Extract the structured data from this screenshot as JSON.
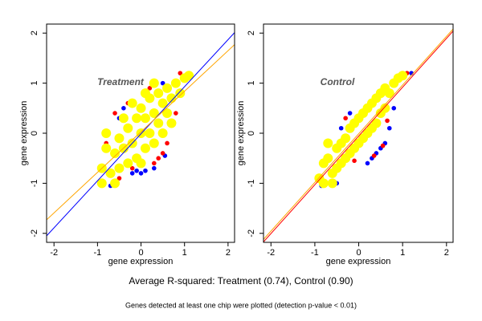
{
  "chart_data": [
    {
      "type": "scatter",
      "title": "Treatment",
      "xlabel": "gene expression",
      "ylabel": "gene expression",
      "xlim": [
        -2.17,
        2.15
      ],
      "ylim": [
        -2.18,
        2.18
      ],
      "xticks": [
        -2,
        -1,
        0,
        1,
        2
      ],
      "yticks": [
        -2,
        -1,
        0,
        1,
        2
      ],
      "series": [
        {
          "color": "#0000ff",
          "x": [
            -0.7,
            -0.9,
            0.1,
            0,
            -0.4,
            -0.5,
            1.15,
            0.55,
            -0.2,
            0.5,
            -0.1,
            0.3
          ],
          "y": [
            -1.05,
            -0.95,
            -0.75,
            -0.8,
            0.5,
            0.3,
            1.15,
            -0.45,
            -0.8,
            1.0,
            -0.75,
            -0.7
          ]
        },
        {
          "color": "#ff0000",
          "x": [
            -0.3,
            -0.6,
            0.5,
            0.6,
            -0.8,
            0.2,
            -0.2,
            0.3,
            0.8,
            -0.5,
            0.9,
            0.4
          ],
          "y": [
            0.6,
            0.4,
            -0.4,
            -0.2,
            -0.2,
            0.9,
            -0.7,
            -0.6,
            0.4,
            -0.9,
            1.2,
            -0.5
          ]
        },
        {
          "color": "#ffff00",
          "x": [
            -0.9,
            -0.8,
            -0.7,
            -0.6,
            -0.5,
            -0.5,
            -0.4,
            -0.3,
            -0.3,
            -0.2,
            -0.1,
            -0.1,
            0,
            0,
            0.1,
            0.1,
            0.2,
            0.2,
            0.3,
            0.3,
            0.4,
            0.4,
            0.5,
            0.5,
            0.6,
            0.6,
            0.7,
            0.8,
            0.9,
            1.0,
            1.1,
            -0.9,
            -0.6,
            -0.2,
            0.1,
            -0.8,
            0.3,
            0.7,
            -0.4,
            0.0
          ],
          "y": [
            -0.7,
            -0.3,
            -0.8,
            -0.4,
            -0.1,
            -0.7,
            -0.3,
            0.1,
            -0.6,
            -0.2,
            0.3,
            -0.5,
            0,
            0.5,
            -0.3,
            0.3,
            0.7,
            0,
            0.4,
            -0.2,
            0.8,
            0.2,
            0.6,
            0,
            0.9,
            0.4,
            0.7,
            1.0,
            0.8,
            1.1,
            1.15,
            -1.0,
            -1.0,
            0.6,
            0.8,
            0.0,
            1.0,
            0.2,
            0.3,
            -0.6
          ]
        }
      ],
      "lines": [
        {
          "color": "#0000ff",
          "x": [
            -2.17,
            2.15
          ],
          "y": [
            -2.05,
            2.01
          ]
        },
        {
          "color": "#ffa500",
          "x": [
            -2.17,
            2.15
          ],
          "y": [
            -1.73,
            1.77
          ]
        }
      ]
    },
    {
      "type": "scatter",
      "title": "Control",
      "xlabel": "gene expression",
      "ylabel": "gene expression",
      "xlim": [
        -2.17,
        2.15
      ],
      "ylim": [
        -2.18,
        2.18
      ],
      "xticks": [
        -2,
        -1,
        0,
        1,
        2
      ],
      "yticks": [
        -2,
        -1,
        0,
        1,
        2
      ],
      "series": [
        {
          "color": "#0000ff",
          "x": [
            -0.85,
            0.3,
            0.5,
            0.6,
            0.4,
            -0.2,
            -0.4,
            0.7,
            1.2,
            -0.5,
            0.8,
            0.2
          ],
          "y": [
            -1.05,
            -0.5,
            -0.3,
            -0.2,
            -0.4,
            0.4,
            0.1,
            0.1,
            1.2,
            -1.0,
            0.5,
            -0.6
          ]
        },
        {
          "color": "#ff0000",
          "x": [
            0.35,
            0.55,
            -0.3,
            1.1,
            -0.1,
            0.65
          ],
          "y": [
            -0.45,
            -0.25,
            0.3,
            1.2,
            -0.55,
            0.25
          ]
        },
        {
          "color": "#ffff00",
          "x": [
            -0.9,
            -0.8,
            -0.8,
            -0.7,
            -0.6,
            -0.5,
            -0.5,
            -0.4,
            -0.4,
            -0.3,
            -0.3,
            -0.2,
            -0.2,
            -0.1,
            -0.1,
            0,
            0,
            0.1,
            0.1,
            0.2,
            0.2,
            0.3,
            0.3,
            0.4,
            0.4,
            0.5,
            0.5,
            0.6,
            0.7,
            0.8,
            0.9,
            1.0,
            -0.6,
            0.6,
            -0.7
          ],
          "y": [
            -0.9,
            -0.6,
            -1.0,
            -0.5,
            -0.8,
            -0.3,
            -0.7,
            -0.2,
            -0.6,
            -0.1,
            -0.5,
            0.1,
            -0.4,
            0.2,
            -0.3,
            0.3,
            -0.2,
            0.4,
            -0.1,
            0.5,
            0,
            0.6,
            0.1,
            0.7,
            0.2,
            0.8,
            0.4,
            0.9,
            0.8,
            1.0,
            1.1,
            1.15,
            -1.0,
            0.5,
            -0.2
          ]
        }
      ],
      "lines": [
        {
          "color": "#ffa500",
          "x": [
            -2.17,
            2.15
          ],
          "y": [
            -2.12,
            2.08
          ]
        },
        {
          "color": "#ff0000",
          "x": [
            -2.17,
            2.15
          ],
          "y": [
            -2.17,
            2.04
          ]
        }
      ]
    }
  ],
  "caption": "Average R-squared: Treatment (0.74), Control (0.90)",
  "footnote": "Genes detected at least one chip were plotted (detection p-value < 0.01)"
}
